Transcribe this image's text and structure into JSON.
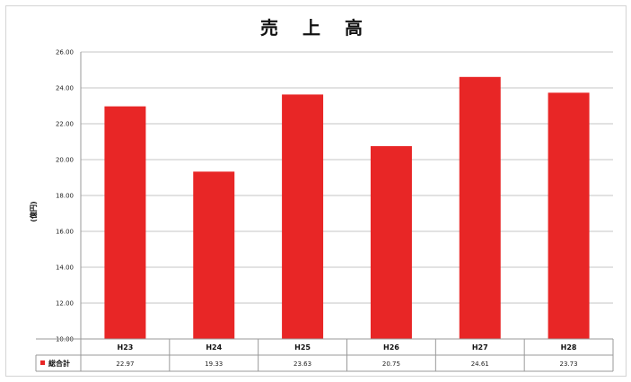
{
  "chart_data": {
    "type": "bar",
    "title": "売 上 高",
    "ylabel": "(億円)",
    "ylim": [
      10,
      26
    ],
    "yticks": [
      "10.00",
      "12.00",
      "14.00",
      "16.00",
      "18.00",
      "20.00",
      "22.00",
      "24.00",
      "26.00"
    ],
    "categories": [
      "H23",
      "H24",
      "H25",
      "H26",
      "H27",
      "H28"
    ],
    "series": [
      {
        "name": "総合計",
        "color": "#e82626",
        "values": [
          22.97,
          19.33,
          23.63,
          20.75,
          24.61,
          23.73
        ],
        "labels": [
          "22.97",
          "19.33",
          "23.63",
          "20.75",
          "24.61",
          "23.73"
        ]
      }
    ],
    "grid": true,
    "data_table": true
  }
}
